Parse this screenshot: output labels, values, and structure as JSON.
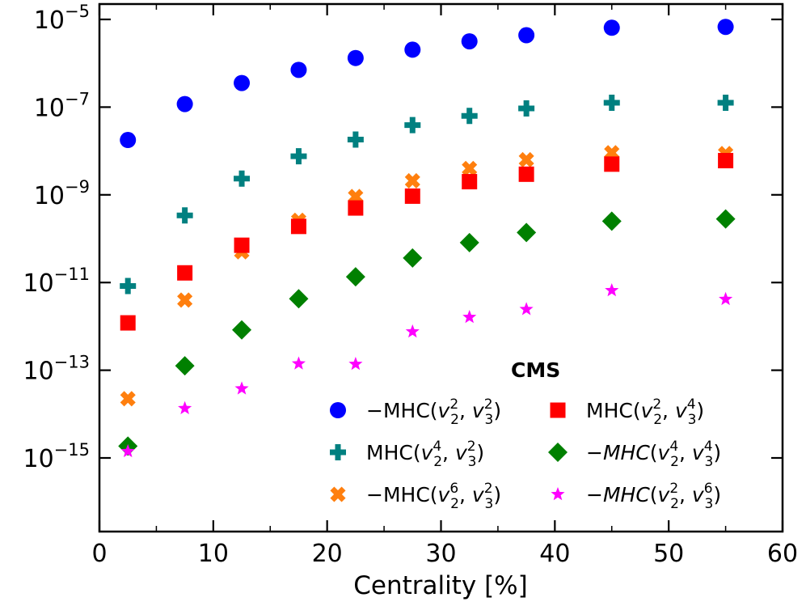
{
  "chart_data": {
    "type": "scatter",
    "x_scale": "linear",
    "y_scale": "log",
    "xlabel": "Centrality [%]",
    "ylabel": "",
    "xlim": [
      0,
      60
    ],
    "ylim_log10": [
      -17,
      -4.6
    ],
    "x_ticks": [
      0,
      10,
      20,
      30,
      40,
      50,
      60
    ],
    "x_tick_labels": [
      "0",
      "10",
      "20",
      "30",
      "40",
      "50",
      "60"
    ],
    "y_tick_exponents": [
      -5,
      -7,
      -9,
      -11,
      -13,
      -15
    ],
    "y_tick_labels": [
      {
        "base": "10",
        "exp": "−5"
      },
      {
        "base": "10",
        "exp": "−7"
      },
      {
        "base": "10",
        "exp": "−9"
      },
      {
        "base": "10",
        "exp": "−11"
      },
      {
        "base": "10",
        "exp": "−13"
      },
      {
        "base": "10",
        "exp": "−15"
      }
    ],
    "annotation": "CMS",
    "legend_location": "bottom-right",
    "series": [
      {
        "name": "−MHC(v2^2, v3^2)",
        "legend": [
          {
            "t": "−MHC(",
            "s": "n"
          },
          {
            "t": "v",
            "s": "i",
            "sub": "2",
            "sup": "2"
          },
          {
            "t": ", ",
            "s": "n"
          },
          {
            "t": "v",
            "s": "i",
            "sub": "3",
            "sup": "2"
          },
          {
            "t": ")",
            "s": "n"
          }
        ],
        "marker": "circle",
        "color": "#0000ff",
        "x": [
          2.5,
          7.5,
          12.5,
          17.5,
          22.5,
          27.5,
          32.5,
          37.5,
          45,
          55
        ],
        "y_log10": [
          -7.75,
          -6.93,
          -6.45,
          -6.15,
          -5.88,
          -5.69,
          -5.5,
          -5.36,
          -5.19,
          -5.17
        ]
      },
      {
        "name": "MHC(v2^2, v3^4)",
        "legend": [
          {
            "t": "MHC(",
            "s": "n"
          },
          {
            "t": "v",
            "s": "i",
            "sub": "2",
            "sup": "2"
          },
          {
            "t": ", ",
            "s": "n"
          },
          {
            "t": "v",
            "s": "i",
            "sub": "3",
            "sup": "4"
          },
          {
            "t": ")",
            "s": "n"
          }
        ],
        "marker": "square",
        "color": "#ff0000",
        "x": [
          2.5,
          7.5,
          12.5,
          17.5,
          22.5,
          27.5,
          32.5,
          37.5,
          45,
          55
        ],
        "y_log10": [
          -11.92,
          -10.78,
          -10.15,
          -9.72,
          -9.3,
          -9.03,
          -8.7,
          -8.53,
          -8.3,
          -8.22
        ]
      },
      {
        "name": "MHC(v2^4, v3^2)",
        "legend": [
          {
            "t": "MHC(",
            "s": "n"
          },
          {
            "t": "v",
            "s": "i",
            "sub": "2",
            "sup": "4"
          },
          {
            "t": ", ",
            "s": "n"
          },
          {
            "t": "v",
            "s": "i",
            "sub": "3",
            "sup": "2"
          },
          {
            "t": ")",
            "s": "n"
          }
        ],
        "marker": "plus",
        "color": "#008080",
        "x": [
          2.5,
          7.5,
          12.5,
          17.5,
          22.5,
          27.5,
          32.5,
          37.5,
          45,
          55
        ],
        "y_log10": [
          -11.08,
          -9.47,
          -8.63,
          -8.12,
          -7.74,
          -7.41,
          -7.2,
          -7.03,
          -6.9,
          -6.9
        ]
      },
      {
        "name": "−MHC(v2^4, v3^4)",
        "legend": [
          {
            "t": "−",
            "s": "n"
          },
          {
            "t": "MHC",
            "s": "i"
          },
          {
            "t": "(",
            "s": "n"
          },
          {
            "t": "v",
            "s": "i",
            "sub": "2",
            "sup": "4"
          },
          {
            "t": ", ",
            "s": "n"
          },
          {
            "t": "v",
            "s": "i",
            "sub": "3",
            "sup": "4"
          },
          {
            "t": ")",
            "s": "n"
          }
        ],
        "marker": "diamond",
        "color": "#008000",
        "x": [
          2.5,
          7.5,
          12.5,
          17.5,
          22.5,
          27.5,
          32.5,
          37.5,
          45,
          55
        ],
        "y_log10": [
          -14.73,
          -12.9,
          -12.08,
          -11.37,
          -10.87,
          -10.44,
          -10.09,
          -9.86,
          -9.6,
          -9.55
        ]
      },
      {
        "name": "−MHC(v2^6, v3^2)",
        "legend": [
          {
            "t": "−MHC(",
            "s": "n"
          },
          {
            "t": "v",
            "s": "i",
            "sub": "2",
            "sup": "6"
          },
          {
            "t": ", ",
            "s": "n"
          },
          {
            "t": "v",
            "s": "i",
            "sub": "3",
            "sup": "2"
          },
          {
            "t": ")",
            "s": "n"
          }
        ],
        "marker": "x",
        "color": "#ff7f0e",
        "x": [
          2.5,
          7.5,
          12.5,
          17.5,
          22.5,
          27.5,
          32.5,
          37.5,
          45,
          55
        ],
        "y_log10": [
          -13.65,
          -11.4,
          -10.3,
          -9.58,
          -9.04,
          -8.68,
          -8.4,
          -8.2,
          -8.04,
          -8.06
        ]
      },
      {
        "name": "−MHC(v2^2, v3^6)",
        "legend": [
          {
            "t": "−",
            "s": "n"
          },
          {
            "t": "MHC",
            "s": "i"
          },
          {
            "t": "(",
            "s": "n"
          },
          {
            "t": "v",
            "s": "i",
            "sub": "2",
            "sup": "2"
          },
          {
            "t": ", ",
            "s": "n"
          },
          {
            "t": "v",
            "s": "i",
            "sub": "3",
            "sup": "6"
          },
          {
            "t": ")",
            "s": "n"
          }
        ],
        "marker": "star",
        "color": "#ff00ff",
        "x": [
          2.5,
          7.5,
          12.5,
          17.5,
          22.5,
          27.5,
          32.5,
          37.5,
          45,
          55
        ],
        "y_log10": [
          -14.85,
          -13.87,
          -13.42,
          -12.85,
          -12.86,
          -12.12,
          -11.79,
          -11.61,
          -11.18,
          -11.38
        ]
      }
    ]
  }
}
